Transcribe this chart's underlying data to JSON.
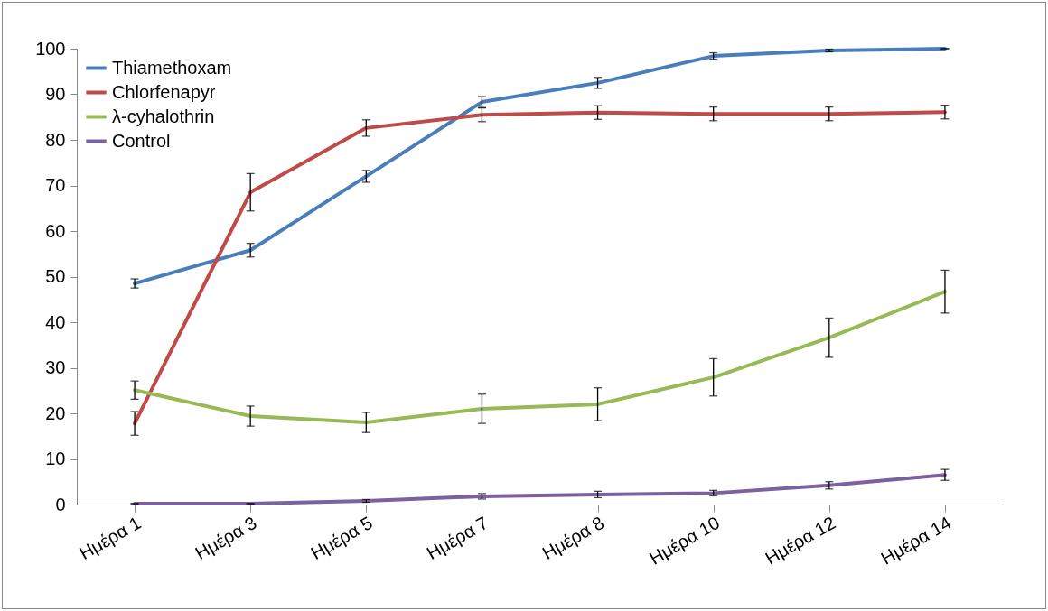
{
  "chart_data": {
    "type": "line",
    "categories": [
      "Ημέρα 1",
      "Ημέρα 3",
      "Ημέρα 5",
      "Ημέρα 7",
      "Ημέρα 8",
      "Ημέρα 10",
      "Ημέρα 12",
      "Ημέρα 14"
    ],
    "ylim": [
      0,
      100
    ],
    "yticks": [
      0,
      10,
      20,
      30,
      40,
      50,
      60,
      70,
      80,
      90,
      100
    ],
    "legend": "top left",
    "series": [
      {
        "name": "Thiamethoxam",
        "color": "#4a7ebb",
        "values": [
          48.5,
          55.8,
          72,
          88.3,
          92.5,
          98.4,
          99.6,
          100
        ],
        "errors": [
          1,
          1.5,
          1.3,
          1.2,
          1.2,
          0.7,
          0.3,
          0
        ]
      },
      {
        "name": "Chlorfenapyr",
        "color": "#be4b48",
        "values": [
          17.8,
          68.5,
          82.6,
          85.5,
          86,
          85.7,
          85.7,
          86.1
        ],
        "errors": [
          2.6,
          4.1,
          1.8,
          1.5,
          1.5,
          1.5,
          1.5,
          1.5
        ]
      },
      {
        "name": "λ-cyhalothrin",
        "color": "#98b954",
        "values": [
          25.1,
          19.4,
          18,
          21,
          22,
          27.9,
          36.6,
          46.7
        ],
        "errors": [
          2,
          2.2,
          2.2,
          3.2,
          3.6,
          4.1,
          4.3,
          4.7
        ]
      },
      {
        "name": "Control",
        "color": "#7d60a0",
        "values": [
          0.2,
          0.2,
          0.8,
          1.8,
          2.2,
          2.5,
          4.2,
          6.5
        ],
        "errors": [
          0,
          0,
          0.3,
          0.6,
          0.7,
          0.6,
          0.8,
          1.2
        ]
      }
    ]
  }
}
